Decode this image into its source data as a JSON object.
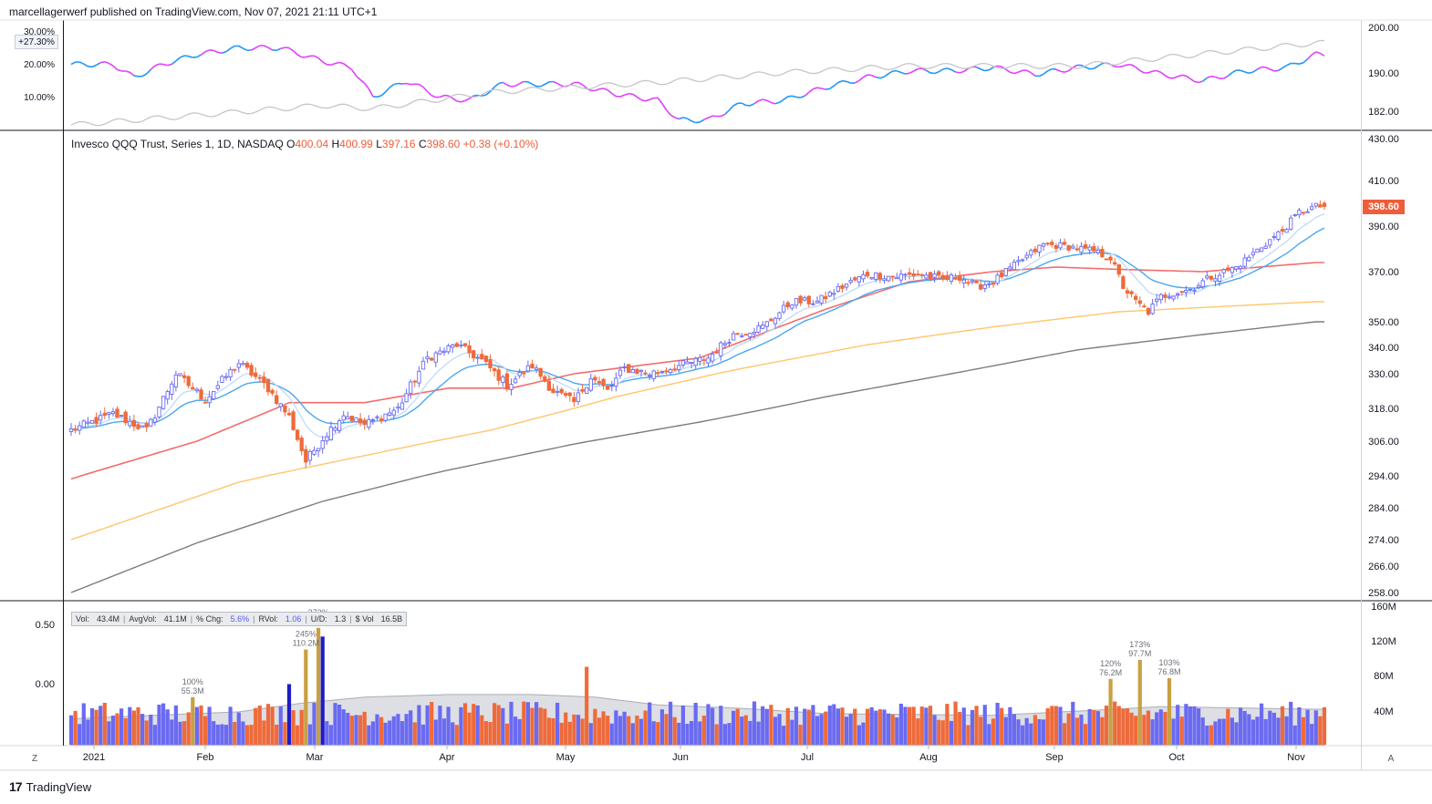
{
  "header": {
    "published_by": "marcellagerwerf published on TradingView.com, Nov 07, 2021 21:11 UTC+1"
  },
  "footer": {
    "brand": "TradingView",
    "logo": "17",
    "left_button": "Z",
    "right_button": "A"
  },
  "colors": {
    "up": "#6a6af2",
    "down": "#ef6a3a",
    "ema_fast": "#4ba6ef",
    "ema_slow": "#b9d9f7",
    "ma50": "#f36d6d",
    "ma150": "#ffc56c",
    "ma200": "#7c7c7c",
    "rs_up": "#2196f3",
    "rs_down": "#e040fb",
    "rs_bench": "#c6c6ca",
    "vol_spike": "#c8a043",
    "vol_dark": "#1c1cc8"
  },
  "legend": {
    "title": "Invesco QQQ Trust, Series 1, 1D, NASDAQ",
    "o_label": "O",
    "o": "400.04",
    "h_label": "H",
    "h": "400.99",
    "l_label": "L",
    "l": "397.16",
    "c_label": "C",
    "c": "398.60",
    "chg": "+0.38 (+0.10%)"
  },
  "last_price_tag": "398.60",
  "rs_tag": "+27.30%",
  "vol_stats": {
    "vol_label": "Vol:",
    "vol": "43.4M",
    "avgvol_label": "AvgVol:",
    "avgvol": "41.1M",
    "pchg_label": "% Chg:",
    "pchg": "5.6%",
    "rvol_label": "RVol:",
    "rvol": "1.06",
    "ud_label": "U/D:",
    "ud": "1.3",
    "dvol_label": "$ Vol",
    "dvol": "16.5B"
  },
  "chart_data": {
    "type": "candlestick",
    "x_labels": [
      "2021",
      "Feb",
      "Mar",
      "Apr",
      "May",
      "Jun",
      "Jul",
      "Aug",
      "Sep",
      "Oct",
      "Nov"
    ],
    "price_axis_ticks": [
      "430.00",
      "410.00",
      "390.00",
      "370.00",
      "350.00",
      "340.00",
      "330.00",
      "318.00",
      "306.00",
      "294.00",
      "284.00",
      "274.00",
      "266.00",
      "258.00"
    ],
    "rs_left_ticks": [
      "30.00%",
      "20.00%",
      "10.00%"
    ],
    "rs_right_ticks": [
      "200.00",
      "190.00",
      "182.00"
    ],
    "vol_left_ticks": [
      "0.50",
      "0.00"
    ],
    "vol_right_ticks": [
      "160M",
      "120M",
      "80M",
      "40M"
    ],
    "close_anchors": [
      [
        0,
        310
      ],
      [
        10,
        316
      ],
      [
        18,
        310
      ],
      [
        25,
        330
      ],
      [
        32,
        321
      ],
      [
        40,
        334
      ],
      [
        47,
        325
      ],
      [
        52,
        315
      ],
      [
        56,
        299
      ],
      [
        60,
        307
      ],
      [
        65,
        316
      ],
      [
        70,
        312
      ],
      [
        78,
        318
      ],
      [
        85,
        336
      ],
      [
        92,
        341
      ],
      [
        98,
        335
      ],
      [
        104,
        326
      ],
      [
        110,
        333
      ],
      [
        115,
        324
      ],
      [
        120,
        320
      ],
      [
        124,
        329
      ],
      [
        128,
        324
      ],
      [
        132,
        332
      ],
      [
        138,
        330
      ],
      [
        145,
        333
      ],
      [
        152,
        336
      ],
      [
        158,
        345
      ],
      [
        165,
        348
      ],
      [
        172,
        358
      ],
      [
        178,
        358
      ],
      [
        185,
        365
      ],
      [
        190,
        369
      ],
      [
        196,
        368
      ],
      [
        202,
        369
      ],
      [
        208,
        367
      ],
      [
        212,
        368
      ],
      [
        216,
        364
      ],
      [
        220,
        366
      ],
      [
        226,
        374
      ],
      [
        232,
        382
      ],
      [
        238,
        381
      ],
      [
        244,
        379
      ],
      [
        248,
        376
      ],
      [
        251,
        364
      ],
      [
        254,
        358
      ],
      [
        257,
        354
      ],
      [
        260,
        360
      ],
      [
        264,
        362
      ],
      [
        267,
        363
      ],
      [
        272,
        368
      ],
      [
        278,
        372
      ],
      [
        284,
        381
      ],
      [
        289,
        388
      ],
      [
        293,
        396
      ],
      [
        297,
        398.6
      ]
    ],
    "ma50_anchors": [
      [
        0,
        293
      ],
      [
        30,
        306
      ],
      [
        52,
        320
      ],
      [
        70,
        320
      ],
      [
        90,
        325
      ],
      [
        105,
        325
      ],
      [
        120,
        330
      ],
      [
        150,
        336
      ],
      [
        180,
        355
      ],
      [
        200,
        366
      ],
      [
        220,
        370
      ],
      [
        235,
        372
      ],
      [
        250,
        371
      ],
      [
        270,
        370
      ],
      [
        297,
        374
      ]
    ],
    "ma150_anchors": [
      [
        0,
        274
      ],
      [
        40,
        292
      ],
      [
        70,
        301
      ],
      [
        100,
        310
      ],
      [
        130,
        322
      ],
      [
        160,
        332
      ],
      [
        190,
        341
      ],
      [
        220,
        348
      ],
      [
        250,
        354
      ],
      [
        297,
        358
      ]
    ],
    "ma200_anchors": [
      [
        0,
        258
      ],
      [
        30,
        273
      ],
      [
        60,
        286
      ],
      [
        90,
        296
      ],
      [
        120,
        305
      ],
      [
        150,
        313
      ],
      [
        180,
        322
      ],
      [
        210,
        330
      ],
      [
        240,
        339
      ],
      [
        270,
        345
      ],
      [
        297,
        350
      ]
    ],
    "volume_annotations": [
      {
        "pct": "100%",
        "vol": "55.3M"
      },
      {
        "pct": "245%",
        "vol": "110.2M"
      },
      {
        "pct": "272%",
        "vol": ""
      },
      {
        "pct": "120%",
        "vol": "76.2M"
      },
      {
        "pct": "173%",
        "vol": "97.7M"
      },
      {
        "pct": "103%",
        "vol": "76.8M"
      }
    ]
  }
}
